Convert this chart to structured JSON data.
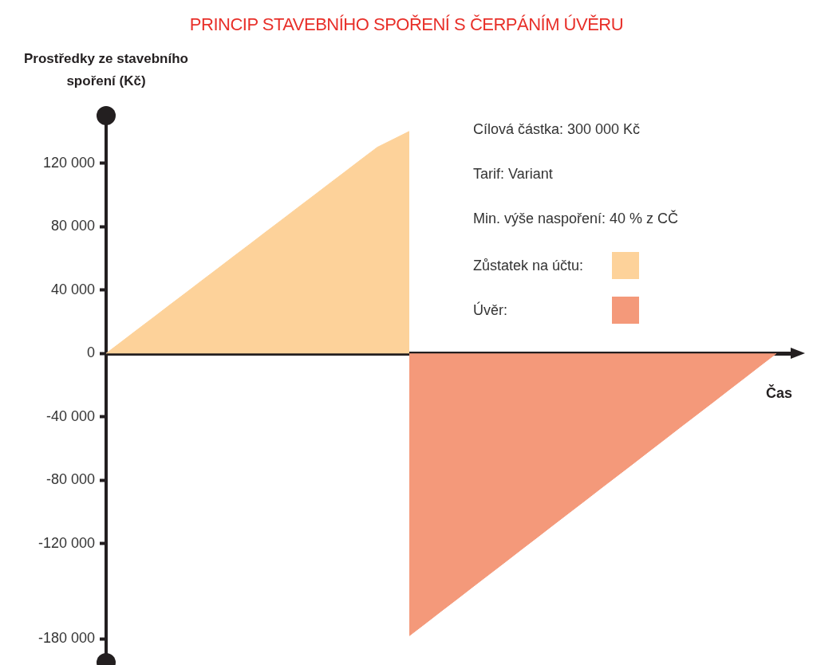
{
  "chart_data": {
    "type": "area",
    "title": "PRINCIP STAVEBNÍHO SPOŘENÍ S ČERPÁNÍM ÚVĚRU",
    "ylabel": "Prostředky ze stavebního spoření (Kč)",
    "xlabel": "Čas",
    "categories": [
      null,
      null,
      null,
      null,
      null,
      null,
      null,
      null,
      null,
      null,
      null,
      null,
      null,
      null,
      null,
      null,
      null,
      null,
      null,
      null,
      null,
      null,
      null,
      null,
      null,
      null,
      null,
      null,
      null,
      null,
      null,
      null,
      null,
      null,
      null,
      null,
      null,
      null,
      null,
      null,
      null,
      null,
      null,
      null
    ],
    "series": [
      {
        "name": "Zůstatek na účtu:",
        "color": "#fdd29a",
        "values": [
          0,
          7600,
          15300,
          22900,
          30600,
          38200,
          45900,
          53500,
          61200,
          68800,
          76500,
          84100,
          91800,
          99400,
          107100,
          114700,
          122400,
          130000,
          135000,
          140000,
          null,
          null,
          null,
          null,
          null,
          null,
          null,
          null,
          null,
          null,
          null,
          null,
          null,
          null,
          null,
          null,
          null,
          null,
          null,
          null,
          null,
          null,
          null,
          null
        ]
      },
      {
        "name": "Úvěr:",
        "color": "#f4997a",
        "values": [
          null,
          null,
          null,
          null,
          null,
          null,
          null,
          null,
          null,
          null,
          null,
          null,
          null,
          null,
          null,
          null,
          null,
          null,
          null,
          -178000,
          -170300,
          -162500,
          -154800,
          -147000,
          -139300,
          -131600,
          -123800,
          -116100,
          -108300,
          -100600,
          -92900,
          -85100,
          -77400,
          -69700,
          -61900,
          -54200,
          -46400,
          -38700,
          -31000,
          -23200,
          -15500,
          -7700,
          0,
          null
        ]
      }
    ],
    "ylim": [
      -190000,
      145000
    ],
    "yticks": [
      {
        "value": -180000,
        "label": "-180 000"
      },
      {
        "value": -120000,
        "label": "-120 000"
      },
      {
        "value": -80000,
        "label": "-80 000"
      },
      {
        "value": -40000,
        "label": "-40 000"
      },
      {
        "value": 0,
        "label": "0"
      },
      {
        "value": 40000,
        "label": "40 000"
      },
      {
        "value": 80000,
        "label": "80 000"
      },
      {
        "value": 120000,
        "label": "120 000"
      }
    ],
    "annotations": [
      "Cílová částka: 300 000 Kč",
      "Tarif: Variant",
      "Min. výše naspoření: 40 % z CČ"
    ],
    "legend": "top right"
  }
}
